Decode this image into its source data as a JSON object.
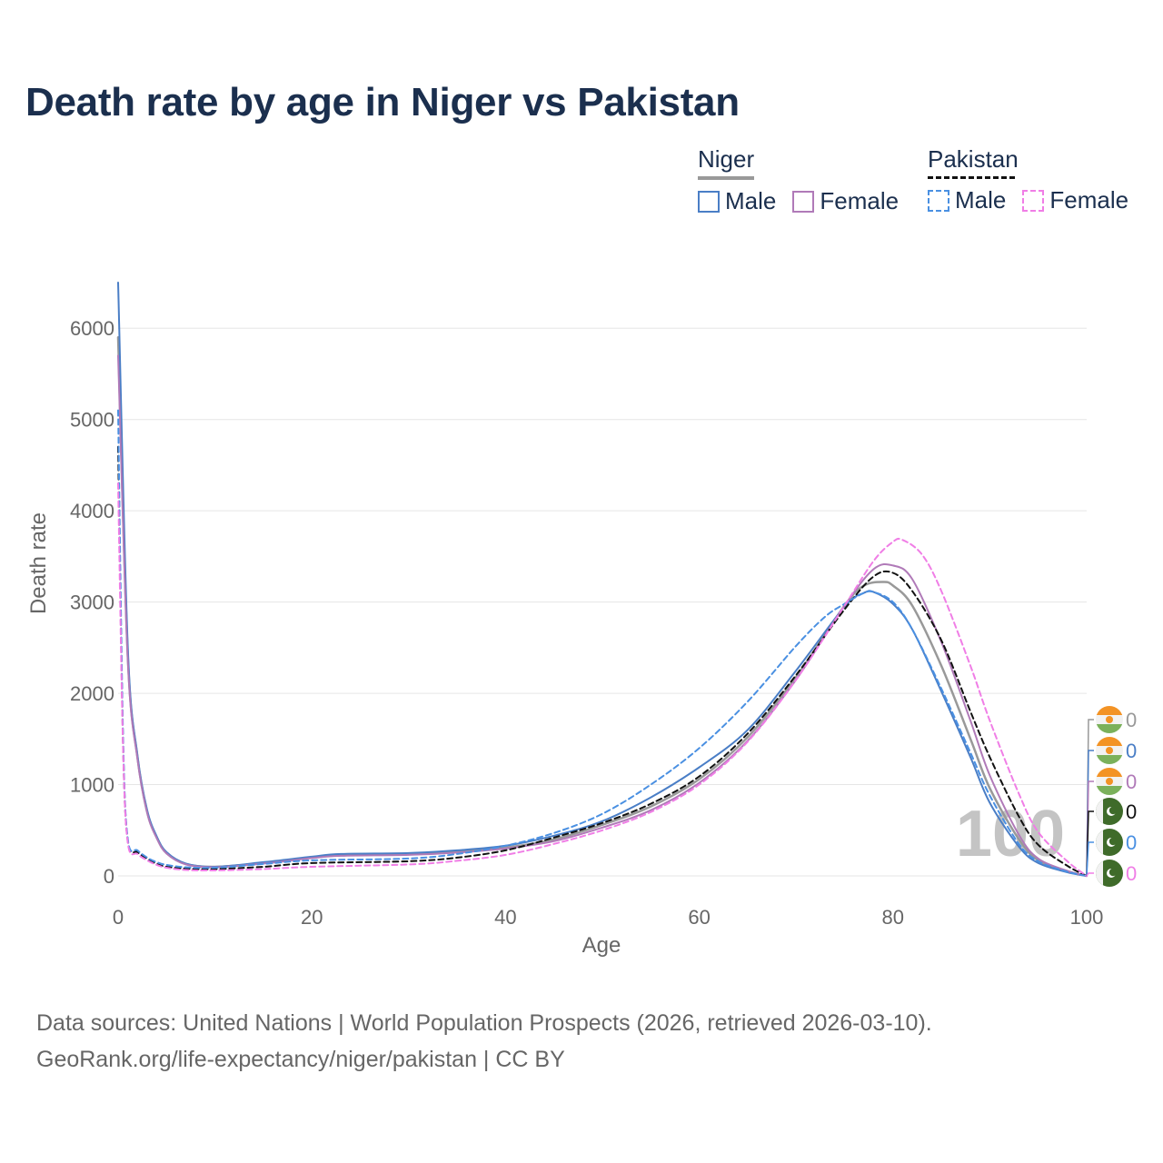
{
  "title": "Death rate by age in Niger vs Pakistan",
  "legend": {
    "groups": [
      {
        "name": "Niger",
        "line_color": "#999999",
        "line_style": "solid",
        "items": [
          {
            "label": "Male",
            "color": "#4a7ec6",
            "style": "solid"
          },
          {
            "label": "Female",
            "color": "#b07ab8",
            "style": "solid"
          }
        ]
      },
      {
        "name": "Pakistan",
        "line_color": "#111111",
        "line_style": "dashed",
        "items": [
          {
            "label": "Male",
            "color": "#4a90e2",
            "style": "dashed"
          },
          {
            "label": "Female",
            "color": "#f07ee6",
            "style": "dashed"
          }
        ]
      }
    ]
  },
  "footer": {
    "line1": "Data sources: United Nations | World Population Prospects (2026, retrieved 2026-03-10).",
    "line2": "GeoRank.org/life-expectancy/niger/pakistan | CC BY"
  },
  "year_label": "100",
  "chart_data": {
    "type": "line",
    "title": "Death rate by age in Niger vs Pakistan",
    "xlabel": "Age",
    "ylabel": "Death rate",
    "xlim": [
      0,
      100
    ],
    "ylim": [
      0,
      6500
    ],
    "xticks": [
      0,
      20,
      40,
      60,
      80,
      100
    ],
    "yticks": [
      0,
      1000,
      2000,
      3000,
      4000,
      5000,
      6000
    ],
    "grid": true,
    "legend_position": "top-right",
    "end_labels": [
      "0",
      "0",
      "0",
      "0",
      "0",
      "0"
    ],
    "series": [
      {
        "name": "Niger (total)",
        "color": "#999999",
        "dash": "solid",
        "width": 2.5,
        "x": [
          0,
          1,
          2,
          3,
          4,
          5,
          7,
          10,
          15,
          20,
          23,
          30,
          35,
          40,
          45,
          50,
          55,
          60,
          65,
          70,
          75,
          77,
          79,
          80,
          82,
          85,
          88,
          90,
          93,
          95,
          98,
          100
        ],
        "y": [
          5900,
          2400,
          1300,
          700,
          420,
          250,
          130,
          100,
          140,
          200,
          225,
          240,
          270,
          310,
          400,
          560,
          760,
          1060,
          1520,
          2180,
          2960,
          3180,
          3220,
          3180,
          2960,
          2300,
          1500,
          960,
          400,
          170,
          50,
          0
        ]
      },
      {
        "name": "Niger Male",
        "color": "#4a7ec6",
        "dash": "solid",
        "width": 2,
        "x": [
          0,
          1,
          2,
          3,
          4,
          5,
          7,
          10,
          15,
          20,
          23,
          30,
          35,
          40,
          45,
          50,
          55,
          60,
          65,
          70,
          75,
          77,
          78,
          80,
          82,
          85,
          88,
          90,
          93,
          95,
          98,
          100
        ],
        "y": [
          6500,
          2500,
          1320,
          720,
          430,
          260,
          135,
          100,
          150,
          210,
          240,
          250,
          280,
          330,
          440,
          600,
          860,
          1190,
          1600,
          2250,
          2950,
          3100,
          3110,
          2980,
          2700,
          2020,
          1300,
          800,
          320,
          140,
          40,
          0
        ]
      },
      {
        "name": "Niger Female",
        "color": "#b07ab8",
        "dash": "solid",
        "width": 2,
        "x": [
          0,
          1,
          2,
          3,
          4,
          5,
          7,
          10,
          15,
          20,
          23,
          30,
          35,
          40,
          45,
          50,
          55,
          60,
          65,
          70,
          75,
          78,
          80,
          82,
          85,
          88,
          90,
          93,
          95,
          98,
          100
        ],
        "y": [
          5700,
          2350,
          1280,
          690,
          410,
          245,
          125,
          95,
          135,
          195,
          220,
          230,
          255,
          300,
          380,
          530,
          720,
          1020,
          1480,
          2150,
          2960,
          3360,
          3400,
          3250,
          2560,
          1700,
          1100,
          450,
          190,
          55,
          0
        ]
      },
      {
        "name": "Pakistan (total)",
        "color": "#111111",
        "dash": "6,4",
        "width": 2,
        "x": [
          0,
          0.5,
          1,
          2,
          3,
          4,
          5,
          7,
          10,
          15,
          20,
          30,
          35,
          40,
          45,
          50,
          55,
          60,
          65,
          70,
          75,
          78,
          80,
          82,
          85,
          88,
          90,
          93,
          95,
          98,
          100
        ],
        "y": [
          4700,
          1500,
          380,
          260,
          190,
          130,
          100,
          80,
          75,
          100,
          140,
          160,
          200,
          280,
          420,
          580,
          790,
          1090,
          1560,
          2200,
          2920,
          3280,
          3320,
          3120,
          2580,
          1800,
          1300,
          650,
          340,
          110,
          0
        ]
      },
      {
        "name": "Pakistan Male",
        "color": "#4a90e2",
        "dash": "6,4",
        "width": 2,
        "x": [
          0,
          0.5,
          1,
          2,
          3,
          4,
          5,
          7,
          10,
          15,
          20,
          30,
          35,
          40,
          45,
          50,
          55,
          60,
          65,
          70,
          73,
          75,
          77,
          78,
          80,
          82,
          85,
          88,
          90,
          93,
          95,
          98,
          100
        ],
        "y": [
          5100,
          1600,
          400,
          280,
          200,
          150,
          120,
          95,
          90,
          130,
          170,
          190,
          240,
          330,
          470,
          680,
          1000,
          1400,
          1910,
          2520,
          2840,
          2980,
          3100,
          3110,
          3000,
          2700,
          2050,
          1350,
          880,
          350,
          160,
          45,
          0
        ]
      },
      {
        "name": "Pakistan Female",
        "color": "#f07ee6",
        "dash": "6,4",
        "width": 2,
        "x": [
          0,
          0.5,
          1,
          2,
          3,
          4,
          5,
          7,
          10,
          15,
          20,
          30,
          35,
          40,
          45,
          50,
          55,
          60,
          65,
          70,
          75,
          78,
          80,
          81,
          83,
          85,
          88,
          90,
          93,
          95,
          98,
          100
        ],
        "y": [
          4300,
          1450,
          360,
          240,
          170,
          120,
          90,
          65,
          60,
          75,
          100,
          125,
          165,
          230,
          350,
          500,
          700,
          1000,
          1470,
          2150,
          2960,
          3450,
          3660,
          3680,
          3520,
          3120,
          2300,
          1700,
          900,
          480,
          160,
          0
        ]
      }
    ]
  }
}
